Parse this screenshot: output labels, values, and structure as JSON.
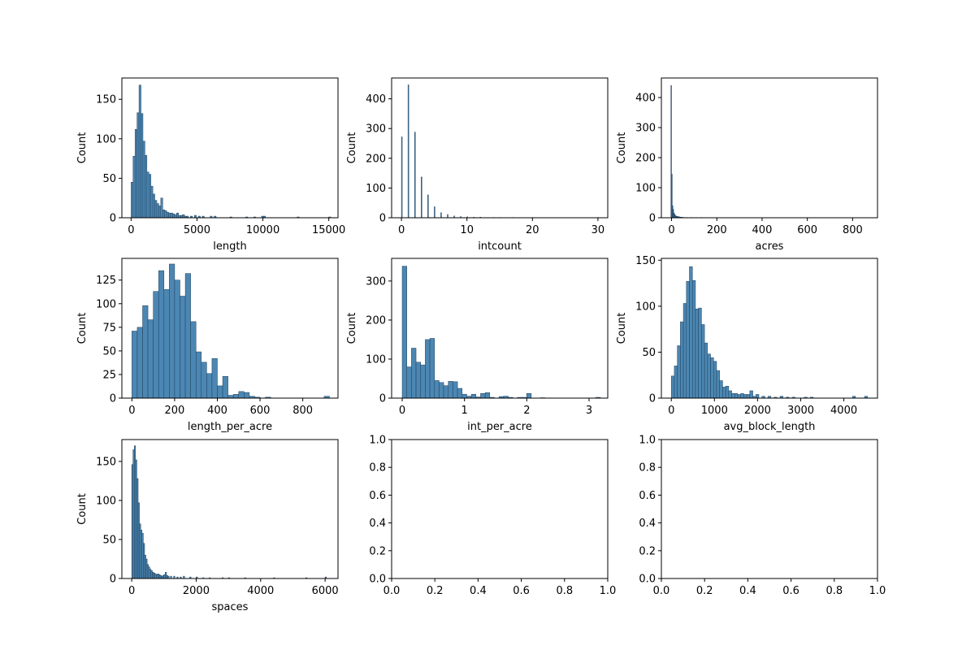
{
  "colors": {
    "bar_fill": "#4c87b3",
    "bar_edge": "#1f3f5a",
    "axis": "#000000",
    "background": "#ffffff"
  },
  "chart_data": [
    {
      "type": "bar",
      "xlabel": "length",
      "ylabel": "Count",
      "xlim": [
        -700,
        15700
      ],
      "ylim": [
        0,
        177
      ],
      "xticks": [
        0,
        5000,
        10000,
        15000
      ],
      "xtick_labels": [
        "0",
        "5000",
        "10000",
        "15000"
      ],
      "yticks": [
        0,
        50,
        100,
        150
      ],
      "ytick_labels": [
        "0",
        "50",
        "100",
        "150"
      ],
      "bins": [
        [
          0,
          45
        ],
        [
          150,
          78
        ],
        [
          300,
          112
        ],
        [
          450,
          133
        ],
        [
          600,
          168
        ],
        [
          750,
          132
        ],
        [
          900,
          97
        ],
        [
          1050,
          79
        ],
        [
          1200,
          58
        ],
        [
          1350,
          55
        ],
        [
          1500,
          40
        ],
        [
          1650,
          30
        ],
        [
          1800,
          22
        ],
        [
          1950,
          18
        ],
        [
          2100,
          15
        ],
        [
          2250,
          25
        ],
        [
          2400,
          10
        ],
        [
          2550,
          9
        ],
        [
          2700,
          7
        ],
        [
          2850,
          6
        ],
        [
          3000,
          6
        ],
        [
          3150,
          5
        ],
        [
          3300,
          4
        ],
        [
          3450,
          6
        ],
        [
          3600,
          3
        ],
        [
          3750,
          3
        ],
        [
          3900,
          4
        ],
        [
          4050,
          2
        ],
        [
          4200,
          2
        ],
        [
          4500,
          2
        ],
        [
          4800,
          3
        ],
        [
          5100,
          2
        ],
        [
          5400,
          2
        ],
        [
          6000,
          2
        ],
        [
          6300,
          2
        ],
        [
          7500,
          1
        ],
        [
          8700,
          1
        ],
        [
          9300,
          1
        ],
        [
          9900,
          2
        ],
        [
          10050,
          2
        ],
        [
          12600,
          1
        ],
        [
          15000,
          1
        ]
      ],
      "bin_width": 150
    },
    {
      "type": "bar",
      "xlabel": "intcount",
      "ylabel": "Count",
      "xlim": [
        -1.5,
        31.5
      ],
      "ylim": [
        0,
        470
      ],
      "xticks": [
        0,
        10,
        20,
        30
      ],
      "xtick_labels": [
        "0",
        "10",
        "20",
        "30"
      ],
      "yticks": [
        0,
        100,
        200,
        300,
        400
      ],
      "ytick_labels": [
        "0",
        "100",
        "200",
        "300",
        "400"
      ],
      "bins": [
        [
          0,
          272
        ],
        [
          1,
          447
        ],
        [
          2,
          288
        ],
        [
          3,
          137
        ],
        [
          4,
          77
        ],
        [
          5,
          37
        ],
        [
          6,
          17
        ],
        [
          7,
          11
        ],
        [
          8,
          6
        ],
        [
          9,
          4
        ],
        [
          10,
          3
        ],
        [
          11,
          2
        ],
        [
          12,
          2
        ],
        [
          14,
          1
        ],
        [
          15,
          1
        ],
        [
          17,
          1
        ],
        [
          20,
          1
        ],
        [
          30,
          1
        ]
      ],
      "bin_width": 0.12
    },
    {
      "type": "bar",
      "xlabel": "acres",
      "ylabel": "Count",
      "xlim": [
        -45,
        910
      ],
      "ylim": [
        0,
        465
      ],
      "xticks": [
        0,
        200,
        400,
        600,
        800
      ],
      "xtick_labels": [
        "0",
        "200",
        "400",
        "600",
        "800"
      ],
      "yticks": [
        0,
        100,
        200,
        300,
        400
      ],
      "ytick_labels": [
        "0",
        "100",
        "200",
        "300",
        "400"
      ],
      "bins": [
        [
          -3,
          440
        ],
        [
          0,
          145
        ],
        [
          3,
          40
        ],
        [
          6,
          28
        ],
        [
          9,
          16
        ],
        [
          12,
          12
        ],
        [
          15,
          8
        ],
        [
          18,
          6
        ],
        [
          21,
          5
        ],
        [
          24,
          4
        ],
        [
          27,
          4
        ],
        [
          30,
          3
        ],
        [
          33,
          3
        ],
        [
          36,
          2
        ],
        [
          40,
          2
        ],
        [
          45,
          2
        ],
        [
          50,
          1
        ],
        [
          55,
          1
        ],
        [
          65,
          1
        ],
        [
          85,
          1
        ],
        [
          130,
          1
        ]
      ],
      "bin_width": 3
    },
    {
      "type": "bar",
      "xlabel": "length_per_acre",
      "ylabel": "Count",
      "xlim": [
        -47,
        965
      ],
      "ylim": [
        0,
        148
      ],
      "xticks": [
        0,
        200,
        400,
        600,
        800
      ],
      "xtick_labels": [
        "0",
        "200",
        "400",
        "600",
        "800"
      ],
      "yticks": [
        0,
        25,
        50,
        75,
        100,
        125
      ],
      "ytick_labels": [
        "0",
        "25",
        "50",
        "75",
        "100",
        "125"
      ],
      "bins": [
        [
          0,
          71
        ],
        [
          25,
          75
        ],
        [
          50,
          98
        ],
        [
          75,
          83
        ],
        [
          100,
          113
        ],
        [
          125,
          135
        ],
        [
          150,
          115
        ],
        [
          175,
          142
        ],
        [
          200,
          125
        ],
        [
          225,
          108
        ],
        [
          250,
          132
        ],
        [
          275,
          81
        ],
        [
          300,
          49
        ],
        [
          325,
          38
        ],
        [
          350,
          26
        ],
        [
          375,
          42
        ],
        [
          400,
          13
        ],
        [
          425,
          23
        ],
        [
          450,
          3
        ],
        [
          475,
          4
        ],
        [
          500,
          7
        ],
        [
          525,
          6
        ],
        [
          550,
          2
        ],
        [
          575,
          1
        ],
        [
          625,
          1
        ],
        [
          900,
          2
        ]
      ],
      "bin_width": 25
    },
    {
      "type": "bar",
      "xlabel": "int_per_acre",
      "ylabel": "Count",
      "xlim": [
        -0.17,
        3.3
      ],
      "ylim": [
        0,
        358
      ],
      "xticks": [
        0,
        1,
        2,
        3
      ],
      "xtick_labels": [
        "0",
        "1",
        "2",
        "3"
      ],
      "yticks": [
        0,
        100,
        200,
        300
      ],
      "ytick_labels": [
        "0",
        "100",
        "200",
        "300"
      ],
      "bins": [
        [
          0,
          338
        ],
        [
          0.074,
          80
        ],
        [
          0.148,
          128
        ],
        [
          0.222,
          92
        ],
        [
          0.296,
          85
        ],
        [
          0.37,
          150
        ],
        [
          0.444,
          153
        ],
        [
          0.518,
          45
        ],
        [
          0.592,
          40
        ],
        [
          0.666,
          32
        ],
        [
          0.74,
          43
        ],
        [
          0.814,
          42
        ],
        [
          0.888,
          25
        ],
        [
          0.962,
          10
        ],
        [
          1.036,
          5
        ],
        [
          1.11,
          10
        ],
        [
          1.184,
          3
        ],
        [
          1.258,
          12
        ],
        [
          1.332,
          14
        ],
        [
          1.406,
          2
        ],
        [
          1.554,
          4
        ],
        [
          1.628,
          5
        ],
        [
          1.702,
          2
        ],
        [
          1.85,
          2
        ],
        [
          1.924,
          2
        ],
        [
          1.998,
          12
        ],
        [
          2.22,
          1
        ],
        [
          3.108,
          2
        ]
      ],
      "bin_width": 0.074
    },
    {
      "type": "bar",
      "xlabel": "avg_block_length",
      "ylabel": "Count",
      "xlim": [
        -230,
        4780
      ],
      "ylim": [
        0,
        152
      ],
      "xticks": [
        0,
        1000,
        2000,
        3000,
        4000
      ],
      "xtick_labels": [
        "0",
        "1000",
        "2000",
        "3000",
        "4000"
      ],
      "yticks": [
        0,
        50,
        100,
        150
      ],
      "ytick_labels": [
        "0",
        "50",
        "100",
        "150"
      ],
      "bins": [
        [
          0,
          24
        ],
        [
          70,
          35
        ],
        [
          140,
          57
        ],
        [
          210,
          83
        ],
        [
          280,
          103
        ],
        [
          350,
          127
        ],
        [
          420,
          143
        ],
        [
          490,
          128
        ],
        [
          560,
          97
        ],
        [
          630,
          98
        ],
        [
          700,
          80
        ],
        [
          770,
          60
        ],
        [
          840,
          48
        ],
        [
          910,
          44
        ],
        [
          980,
          40
        ],
        [
          1050,
          30
        ],
        [
          1120,
          19
        ],
        [
          1190,
          12
        ],
        [
          1260,
          13
        ],
        [
          1330,
          8
        ],
        [
          1400,
          5
        ],
        [
          1470,
          5
        ],
        [
          1540,
          4
        ],
        [
          1610,
          5
        ],
        [
          1680,
          4
        ],
        [
          1750,
          4
        ],
        [
          1820,
          8
        ],
        [
          1890,
          2
        ],
        [
          1960,
          4
        ],
        [
          2100,
          2
        ],
        [
          2240,
          2
        ],
        [
          2380,
          1
        ],
        [
          2520,
          2
        ],
        [
          2660,
          1
        ],
        [
          2800,
          1
        ],
        [
          3080,
          1
        ],
        [
          3220,
          1
        ],
        [
          4200,
          2
        ],
        [
          4480,
          2
        ]
      ],
      "bin_width": 70
    },
    {
      "type": "bar",
      "xlabel": "spaces",
      "ylabel": "Count",
      "xlim": [
        -305,
        6400
      ],
      "ylim": [
        0,
        178
      ],
      "xticks": [
        0,
        2000,
        4000,
        6000
      ],
      "xtick_labels": [
        "0",
        "2000",
        "4000",
        "6000"
      ],
      "yticks": [
        0,
        50,
        100,
        150
      ],
      "ytick_labels": [
        "0",
        "50",
        "100",
        "150"
      ],
      "bins": [
        [
          0,
          146
        ],
        [
          40,
          165
        ],
        [
          80,
          170
        ],
        [
          120,
          152
        ],
        [
          160,
          128
        ],
        [
          200,
          97
        ],
        [
          240,
          70
        ],
        [
          280,
          62
        ],
        [
          320,
          58
        ],
        [
          360,
          45
        ],
        [
          400,
          30
        ],
        [
          440,
          25
        ],
        [
          480,
          18
        ],
        [
          520,
          15
        ],
        [
          560,
          12
        ],
        [
          600,
          10
        ],
        [
          640,
          8
        ],
        [
          680,
          7
        ],
        [
          720,
          6
        ],
        [
          760,
          5
        ],
        [
          800,
          6
        ],
        [
          840,
          5
        ],
        [
          880,
          4
        ],
        [
          920,
          3
        ],
        [
          960,
          4
        ],
        [
          1000,
          5
        ],
        [
          1040,
          8
        ],
        [
          1080,
          4
        ],
        [
          1120,
          3
        ],
        [
          1200,
          3
        ],
        [
          1300,
          3
        ],
        [
          1400,
          2
        ],
        [
          1500,
          2
        ],
        [
          1600,
          3
        ],
        [
          1800,
          2
        ],
        [
          2000,
          2
        ],
        [
          2200,
          1
        ],
        [
          2400,
          1
        ],
        [
          2800,
          1
        ],
        [
          3000,
          1
        ],
        [
          3500,
          1
        ],
        [
          4400,
          1
        ],
        [
          5400,
          1
        ],
        [
          6000,
          2
        ]
      ],
      "bin_width": 40
    },
    {
      "type": "empty",
      "xlabel": "",
      "ylabel": "",
      "xlim": [
        0,
        1
      ],
      "ylim": [
        0,
        1
      ],
      "xticks": [
        0,
        0.2,
        0.4,
        0.6,
        0.8,
        1
      ],
      "xtick_labels": [
        "0.0",
        "0.2",
        "0.4",
        "0.6",
        "0.8",
        "1.0"
      ],
      "yticks": [
        0,
        0.2,
        0.4,
        0.6,
        0.8,
        1
      ],
      "ytick_labels": [
        "0.0",
        "0.2",
        "0.4",
        "0.6",
        "0.8",
        "1.0"
      ],
      "bins": [],
      "bin_width": 0
    },
    {
      "type": "empty",
      "xlabel": "",
      "ylabel": "",
      "xlim": [
        0,
        1
      ],
      "ylim": [
        0,
        1
      ],
      "xticks": [
        0,
        0.2,
        0.4,
        0.6,
        0.8,
        1
      ],
      "xtick_labels": [
        "0.0",
        "0.2",
        "0.4",
        "0.6",
        "0.8",
        "1.0"
      ],
      "yticks": [
        0,
        0.2,
        0.4,
        0.6,
        0.8,
        1
      ],
      "ytick_labels": [
        "0.0",
        "0.2",
        "0.4",
        "0.6",
        "0.8",
        "1.0"
      ],
      "bins": [],
      "bin_width": 0
    }
  ]
}
